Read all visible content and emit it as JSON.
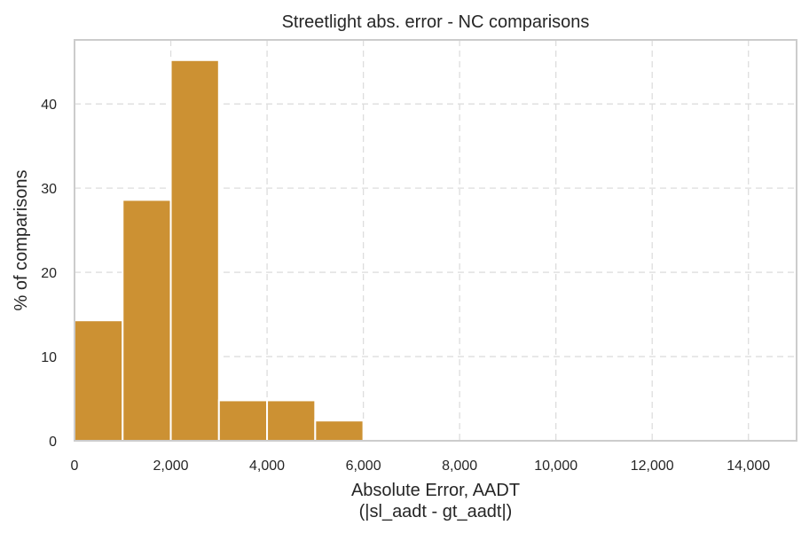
{
  "chart_data": {
    "type": "bar",
    "title": "Streetlight abs. error - NC comparisons",
    "xlabel_line1": "Absolute Error, AADT",
    "xlabel_line2": "(|sl_aadt - gt_aadt|)",
    "ylabel": "% of comparisons",
    "bar_color": "#cc9133",
    "bin_edges": [
      0,
      1000,
      2000,
      3000,
      4000,
      5000,
      6000
    ],
    "values": [
      14.3,
      28.6,
      45.2,
      4.8,
      4.8,
      2.4
    ],
    "xlim": [
      0,
      15000
    ],
    "ylim": [
      0,
      47.6
    ],
    "x_ticks": [
      0,
      2000,
      4000,
      6000,
      8000,
      10000,
      12000,
      14000
    ],
    "x_tick_labels": [
      "0",
      "2,000",
      "4,000",
      "6,000",
      "8,000",
      "10,000",
      "12,000",
      "14,000"
    ],
    "y_ticks": [
      0,
      10,
      20,
      30,
      40
    ],
    "y_tick_labels": [
      "0",
      "10",
      "20",
      "30",
      "40"
    ],
    "grid": true
  }
}
